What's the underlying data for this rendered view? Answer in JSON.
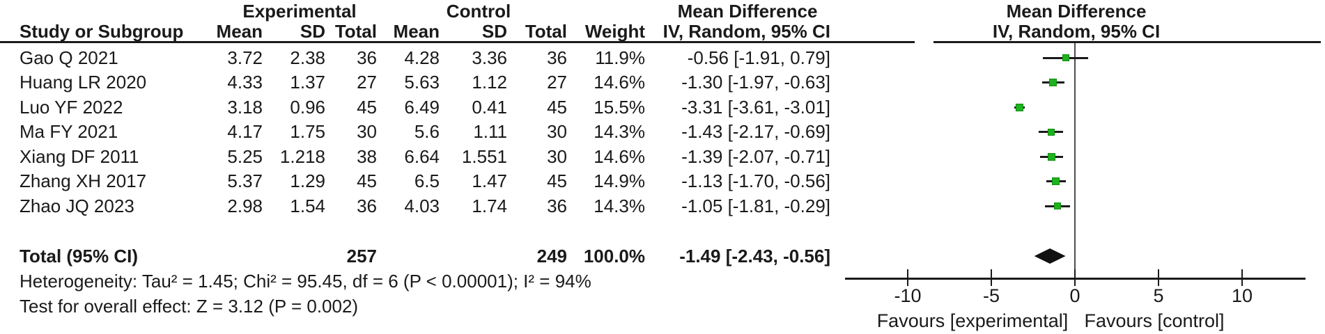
{
  "chart_data": {
    "type": "scatter",
    "subtype": "forest-plot",
    "effect_measure": "Mean Difference",
    "group_headers": {
      "experimental": "Experimental",
      "control": "Control",
      "md_text_col": "Mean Difference",
      "md_plot_col": "Mean Difference",
      "method_text_col": "IV, Random, 95% CI",
      "method_plot_col": "IV, Random, 95% CI"
    },
    "columns": {
      "study": "Study or Subgroup",
      "exp_mean": "Mean",
      "exp_sd": "SD",
      "exp_total": "Total",
      "ctrl_mean": "Mean",
      "ctrl_sd": "SD",
      "ctrl_total": "Total",
      "weight": "Weight",
      "ci": "IV, Random, 95% CI"
    },
    "studies": [
      {
        "name": "Gao Q 2021",
        "exp_mean": "3.72",
        "exp_sd": "2.38",
        "exp_total": "36",
        "ctrl_mean": "4.28",
        "ctrl_sd": "3.36",
        "ctrl_total": "36",
        "weight": "11.9%",
        "weight_pct": 11.9,
        "ci_label": "-0.56 [-1.91, 0.79]",
        "md": -0.56,
        "ci_low": -1.91,
        "ci_high": 0.79
      },
      {
        "name": "Huang LR 2020",
        "exp_mean": "4.33",
        "exp_sd": "1.37",
        "exp_total": "27",
        "ctrl_mean": "5.63",
        "ctrl_sd": "1.12",
        "ctrl_total": "27",
        "weight": "14.6%",
        "weight_pct": 14.6,
        "ci_label": "-1.30 [-1.97, -0.63]",
        "md": -1.3,
        "ci_low": -1.97,
        "ci_high": -0.63
      },
      {
        "name": "Luo YF 2022",
        "exp_mean": "3.18",
        "exp_sd": "0.96",
        "exp_total": "45",
        "ctrl_mean": "6.49",
        "ctrl_sd": "0.41",
        "ctrl_total": "45",
        "weight": "15.5%",
        "weight_pct": 15.5,
        "ci_label": "-3.31 [-3.61, -3.01]",
        "md": -3.31,
        "ci_low": -3.61,
        "ci_high": -3.01
      },
      {
        "name": "Ma FY 2021",
        "exp_mean": "4.17",
        "exp_sd": "1.75",
        "exp_total": "30",
        "ctrl_mean": "5.6",
        "ctrl_sd": "1.11",
        "ctrl_total": "30",
        "weight": "14.3%",
        "weight_pct": 14.3,
        "ci_label": "-1.43 [-2.17, -0.69]",
        "md": -1.43,
        "ci_low": -2.17,
        "ci_high": -0.69
      },
      {
        "name": "Xiang DF 2011",
        "exp_mean": "5.25",
        "exp_sd": "1.218",
        "exp_total": "38",
        "ctrl_mean": "6.64",
        "ctrl_sd": "1.551",
        "ctrl_total": "30",
        "weight": "14.6%",
        "weight_pct": 14.6,
        "ci_label": "-1.39 [-2.07, -0.71]",
        "md": -1.39,
        "ci_low": -2.07,
        "ci_high": -0.71
      },
      {
        "name": "Zhang XH 2017",
        "exp_mean": "5.37",
        "exp_sd": "1.29",
        "exp_total": "45",
        "ctrl_mean": "6.5",
        "ctrl_sd": "1.47",
        "ctrl_total": "45",
        "weight": "14.9%",
        "weight_pct": 14.9,
        "ci_label": "-1.13 [-1.70, -0.56]",
        "md": -1.13,
        "ci_low": -1.7,
        "ci_high": -0.56
      },
      {
        "name": "Zhao JQ 2023",
        "exp_mean": "2.98",
        "exp_sd": "1.54",
        "exp_total": "36",
        "ctrl_mean": "4.03",
        "ctrl_sd": "1.74",
        "ctrl_total": "36",
        "weight": "14.3%",
        "weight_pct": 14.3,
        "ci_label": "-1.05 [-1.81, -0.29]",
        "md": -1.05,
        "ci_low": -1.81,
        "ci_high": -0.29
      }
    ],
    "total": {
      "label": "Total (95% CI)",
      "exp_total": "257",
      "ctrl_total": "249",
      "weight": "100.0%",
      "ci_label": "-1.49 [-2.43, -0.56]",
      "md": -1.49,
      "ci_low": -2.43,
      "ci_high": -0.56
    },
    "footer": {
      "heterogeneity": "Heterogeneity: Tau² = 1.45; Chi² = 95.45, df = 6 (P < 0.00001); I² = 94%",
      "overall_effect": "Test for overall effect: Z = 3.12 (P = 0.002)"
    },
    "axis": {
      "min": -10,
      "max": 10,
      "ticks": [
        "-10",
        "-5",
        "0",
        "5",
        "10"
      ],
      "tick_values": [
        -10,
        -5,
        0,
        5,
        10
      ],
      "favours_left": "Favours [experimental]",
      "favours_right": "Favours [control]"
    },
    "colors": {
      "marker_green": "#1db31d",
      "marker_border": "#0e8c0e",
      "diamond_black": "#111111",
      "line_black": "#1a1a1a",
      "zero_line_gray": "#4d4d4d"
    }
  }
}
